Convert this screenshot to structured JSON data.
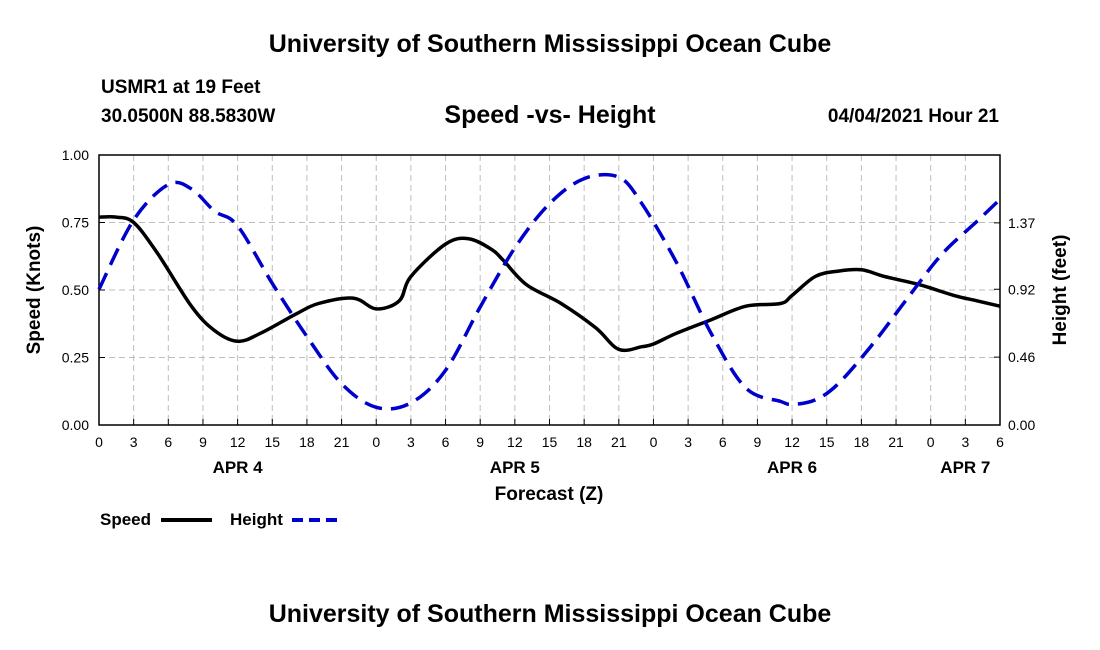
{
  "header": {
    "top_title": "University of Southern Mississippi Ocean Cube",
    "station": "USMR1 at 19 Feet",
    "coords": "30.0500N  88.5830W",
    "subtitle": "Speed -vs- Height",
    "datetime": "04/04/2021 Hour 21",
    "bottom_title": "University of Southern Mississippi Ocean Cube"
  },
  "chart_data": {
    "type": "line",
    "title": "Speed -vs- Height",
    "xlabel": "Forecast (Z)",
    "ylabel": "Speed (Knots)",
    "y2label": "Height (feet)",
    "x_range_hours": [
      0,
      78
    ],
    "x_tick_labels": [
      "0",
      "3",
      "6",
      "9",
      "12",
      "15",
      "18",
      "21",
      "0",
      "3",
      "6",
      "9",
      "12",
      "15",
      "18",
      "21",
      "0",
      "3",
      "6",
      "9",
      "12",
      "15",
      "18",
      "21",
      "0",
      "3",
      "6"
    ],
    "date_labels": [
      {
        "label": "APR 4",
        "hour": 12
      },
      {
        "label": "APR 5",
        "hour": 36
      },
      {
        "label": "APR 6",
        "hour": 60
      },
      {
        "label": "APR 7",
        "hour": 75
      }
    ],
    "ylim": [
      0,
      1.0
    ],
    "y_ticks": [
      "0.00",
      "0.25",
      "0.50",
      "0.75",
      "1.00"
    ],
    "y2lim": [
      0,
      1.83
    ],
    "y2_ticks": [
      "0.00",
      "0.46",
      "0.92",
      "1.37"
    ],
    "grid": true,
    "legend": [
      "Speed",
      "Height"
    ],
    "series": [
      {
        "name": "Speed",
        "axis": "left",
        "color": "#000000",
        "style": "solid",
        "x": [
          0,
          1.5,
          3,
          5,
          8,
          10,
          12,
          14,
          17,
          19,
          22,
          24,
          26,
          27,
          30,
          32,
          34,
          35,
          37,
          40,
          43,
          45,
          47,
          48,
          50,
          53,
          56,
          59,
          60,
          62,
          64,
          66,
          68,
          71,
          74,
          76,
          78
        ],
        "values": [
          0.77,
          0.77,
          0.75,
          0.64,
          0.44,
          0.35,
          0.31,
          0.34,
          0.41,
          0.45,
          0.47,
          0.43,
          0.46,
          0.55,
          0.67,
          0.69,
          0.65,
          0.61,
          0.52,
          0.45,
          0.36,
          0.28,
          0.29,
          0.3,
          0.34,
          0.39,
          0.44,
          0.45,
          0.48,
          0.55,
          0.57,
          0.575,
          0.55,
          0.52,
          0.48,
          0.46,
          0.44
        ]
      },
      {
        "name": "Height",
        "axis": "right",
        "color": "#0000cc",
        "style": "dashed",
        "x": [
          0,
          3,
          6,
          8,
          10,
          12,
          15,
          18,
          21,
          24,
          27,
          30,
          33,
          36,
          39,
          42,
          45,
          47,
          50,
          53,
          56,
          59,
          60,
          62,
          64,
          67,
          70,
          73,
          76,
          78
        ],
        "values": [
          0.92,
          1.39,
          1.63,
          1.6,
          1.45,
          1.35,
          0.96,
          0.6,
          0.28,
          0.12,
          0.15,
          0.37,
          0.8,
          1.2,
          1.5,
          1.67,
          1.68,
          1.5,
          1.1,
          0.62,
          0.25,
          0.16,
          0.14,
          0.17,
          0.28,
          0.55,
          0.86,
          1.16,
          1.38,
          1.53
        ]
      }
    ]
  }
}
